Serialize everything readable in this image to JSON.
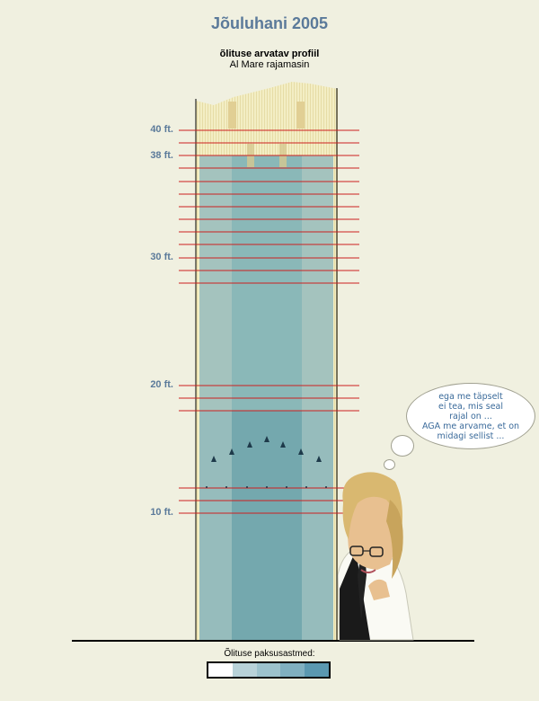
{
  "header": {
    "title": "Jõuluhani 2005",
    "subtitle": "õlituse arvatav profiil",
    "subtitle2": "Al Mare rajamasin"
  },
  "depth_labels": [
    "40 ft.",
    "38 ft.",
    "30 ft.",
    "20 ft.",
    "10 ft."
  ],
  "bubble_lines": [
    "ega me täpselt",
    "ei tea, mis seal",
    "rajal on ...",
    "AGA me arvame, et on",
    "midagi sellist ..."
  ],
  "legend": {
    "label": "Õlituse paksusastmed:",
    "colors": [
      "#ffffff",
      "#b8d2d8",
      "#9cc2cc",
      "#80b0c0",
      "#5a98b0"
    ]
  },
  "colors": {
    "accent_text": "#5b7a9a",
    "board_line": "#cc2020",
    "oil_light": "#a4c3be",
    "oil_dark": "#77aaae",
    "lane_pale": "#f1ecc0"
  }
}
